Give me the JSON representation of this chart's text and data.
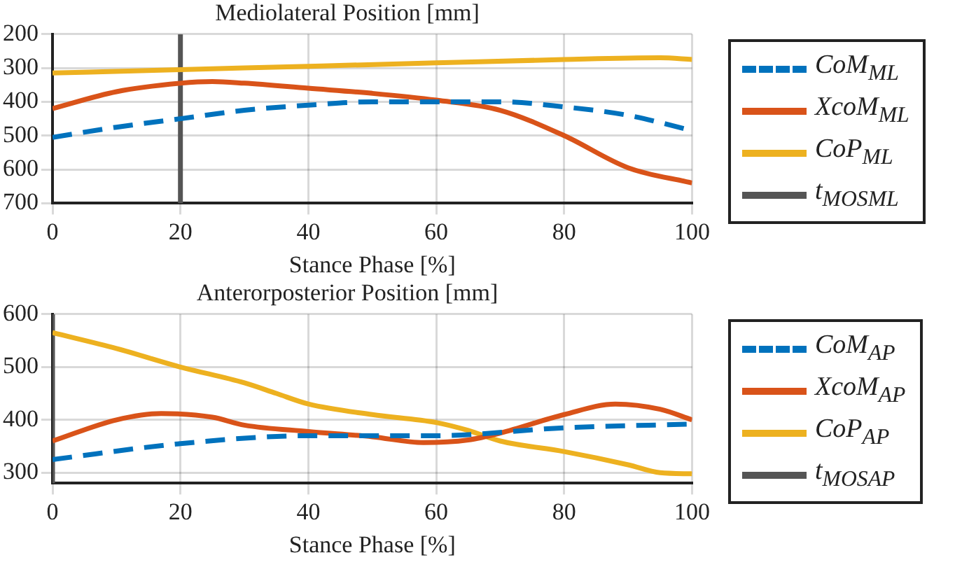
{
  "chart_data": [
    {
      "type": "line",
      "title": "Mediolateral Position [mm]",
      "xlabel": "Stance Phase [%]",
      "xlim": [
        0,
        100
      ],
      "xticks": [
        0,
        20,
        40,
        60,
        80,
        100
      ],
      "ylim": [
        700,
        200
      ],
      "yticks": [
        200,
        300,
        400,
        500,
        600,
        700
      ],
      "grid": true,
      "legend": "right",
      "marker": "none",
      "series": [
        {
          "name": "CoM$_{ML}$",
          "color": "#0072bd",
          "line_style": "dashed",
          "x": [
            0,
            10,
            20,
            30,
            40,
            50,
            60,
            70,
            80,
            90,
            100
          ],
          "values": [
            505,
            475,
            450,
            425,
            410,
            400,
            400,
            400,
            415,
            440,
            485
          ]
        },
        {
          "name": "XcoM$_{ML}$",
          "color": "#d95319",
          "line_style": "solid",
          "x": [
            0,
            10,
            20,
            25,
            30,
            40,
            50,
            60,
            70,
            80,
            90,
            100
          ],
          "values": [
            420,
            370,
            345,
            340,
            345,
            360,
            375,
            395,
            425,
            500,
            595,
            640
          ]
        },
        {
          "name": "CoP$_{ML}$",
          "color": "#edb120",
          "line_style": "solid",
          "x": [
            0,
            20,
            40,
            60,
            80,
            95,
            100
          ],
          "values": [
            315,
            305,
            295,
            285,
            275,
            270,
            275
          ]
        },
        {
          "name": "t$_{MOS}$$_{ML}$",
          "color": "#555555",
          "line_style": "solid",
          "x": [
            20,
            20
          ],
          "values": [
            700,
            200
          ]
        }
      ]
    },
    {
      "type": "line",
      "title": "Anterorposterior Position [mm]",
      "xlabel": "Stance Phase [%]",
      "xlim": [
        0,
        100
      ],
      "xticks": [
        0,
        20,
        40,
        60,
        80,
        100
      ],
      "ylim": [
        280,
        600
      ],
      "yticks": [
        300,
        400,
        500,
        600
      ],
      "grid": true,
      "legend": "right",
      "marker": "none",
      "series": [
        {
          "name": "CoM$_{AP}$",
          "color": "#0072bd",
          "line_style": "dashed",
          "x": [
            0,
            20,
            40,
            60,
            80,
            100
          ],
          "values": [
            325,
            355,
            370,
            370,
            385,
            392
          ]
        },
        {
          "name": "XcoM$_{AP}$",
          "color": "#d95319",
          "line_style": "solid",
          "x": [
            0,
            10,
            17,
            25,
            30,
            40,
            50,
            58,
            65,
            70,
            80,
            88,
            95,
            100
          ],
          "values": [
            360,
            400,
            412,
            405,
            390,
            378,
            368,
            357,
            362,
            375,
            410,
            430,
            420,
            400
          ]
        },
        {
          "name": "CoP$_{AP}$",
          "color": "#edb120",
          "line_style": "solid",
          "x": [
            0,
            10,
            20,
            30,
            35,
            40,
            50,
            60,
            65,
            70,
            80,
            90,
            95,
            100
          ],
          "values": [
            565,
            535,
            500,
            470,
            450,
            430,
            410,
            395,
            380,
            360,
            340,
            315,
            300,
            298
          ]
        },
        {
          "name": "t$_{MOS}$$_{AP}$",
          "color": "#555555",
          "line_style": "solid",
          "x": [
            0,
            0
          ],
          "values": [
            280,
            600
          ]
        }
      ]
    }
  ]
}
